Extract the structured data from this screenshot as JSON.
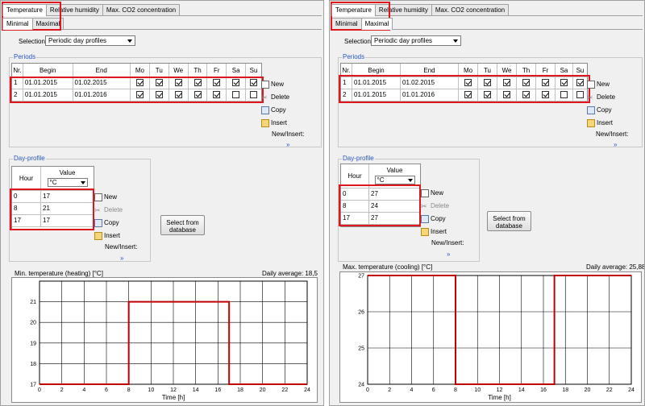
{
  "colors": {
    "accent": "#2656c8",
    "highlight": "#e0161f",
    "curve": "#c00000"
  },
  "tabs": [
    "Temperature",
    "Relative humidity",
    "Max. CO2 concentration"
  ],
  "subtabs": [
    "Minimal",
    "Maximal"
  ],
  "labels": {
    "selection": "Selection",
    "periods": "Periods",
    "day_profile": "Day-profile",
    "select_from_db_line1": "Select from",
    "select_from_db_line2": "database",
    "time_axis": "Time [h]"
  },
  "actions": {
    "new": "New",
    "delete": "Delete",
    "copy": "Copy",
    "insert": "Insert",
    "new_insert": "New/Insert:",
    "more": "»"
  },
  "periods_headers": [
    "Nr.",
    "Begin",
    "End",
    "Mo",
    "Tu",
    "We",
    "Th",
    "Fr",
    "Sa",
    "Su"
  ],
  "periods_rows": [
    {
      "nr": "1",
      "begin": "01.01.2015",
      "end": "01.02.2015",
      "days": [
        true,
        true,
        true,
        true,
        true,
        true,
        true
      ]
    },
    {
      "nr": "2",
      "begin": "01.01.2015",
      "end": "01.01.2016",
      "days": [
        true,
        true,
        true,
        true,
        true,
        false,
        false
      ]
    }
  ],
  "profile_headers": {
    "hour": "Hour",
    "value": "Value",
    "unit": "°C"
  },
  "left": {
    "active_subtab": "Minimal",
    "selection_value": "Periodic day profiles",
    "profile_rows": [
      {
        "hour": "0",
        "value": "17"
      },
      {
        "hour": "8",
        "value": "21"
      },
      {
        "hour": "17",
        "value": "17"
      }
    ],
    "chart_title": "Min. temperature (heating) [°C]",
    "daily_average": "Daily average: 18,5"
  },
  "right": {
    "active_subtab": "Maximal",
    "selection_value": "Periodic day profiles",
    "profile_rows": [
      {
        "hour": "0",
        "value": "27"
      },
      {
        "hour": "8",
        "value": "24"
      },
      {
        "hour": "17",
        "value": "27"
      }
    ],
    "chart_title": "Max. temperature (cooling) [°C]",
    "daily_average": "Daily average: 25,88"
  },
  "chart_data": [
    {
      "type": "line",
      "title": "Min. temperature (heating) [°C]",
      "xlabel": "Time [h]",
      "ylabel": "",
      "xlim": [
        0,
        24
      ],
      "ylim": [
        17,
        22
      ],
      "xticks": [
        0,
        2,
        4,
        6,
        8,
        10,
        12,
        14,
        16,
        18,
        20,
        22,
        24
      ],
      "yticks": [
        17,
        18,
        19,
        20,
        21
      ],
      "grid": true,
      "series": [
        {
          "x": [
            0,
            8,
            8,
            17,
            17,
            24
          ],
          "y": [
            17,
            17,
            21,
            21,
            17,
            17
          ]
        }
      ]
    },
    {
      "type": "line",
      "title": "Max. temperature (cooling) [°C]",
      "xlabel": "Time [h]",
      "ylabel": "",
      "xlim": [
        0,
        24
      ],
      "ylim": [
        24,
        27
      ],
      "xticks": [
        0,
        2,
        4,
        6,
        8,
        10,
        12,
        14,
        16,
        18,
        20,
        22,
        24
      ],
      "yticks": [
        24,
        25,
        26,
        27
      ],
      "grid": true,
      "series": [
        {
          "x": [
            0,
            8,
            8,
            17,
            17,
            24
          ],
          "y": [
            27,
            27,
            24,
            24,
            27,
            27
          ]
        }
      ]
    }
  ]
}
